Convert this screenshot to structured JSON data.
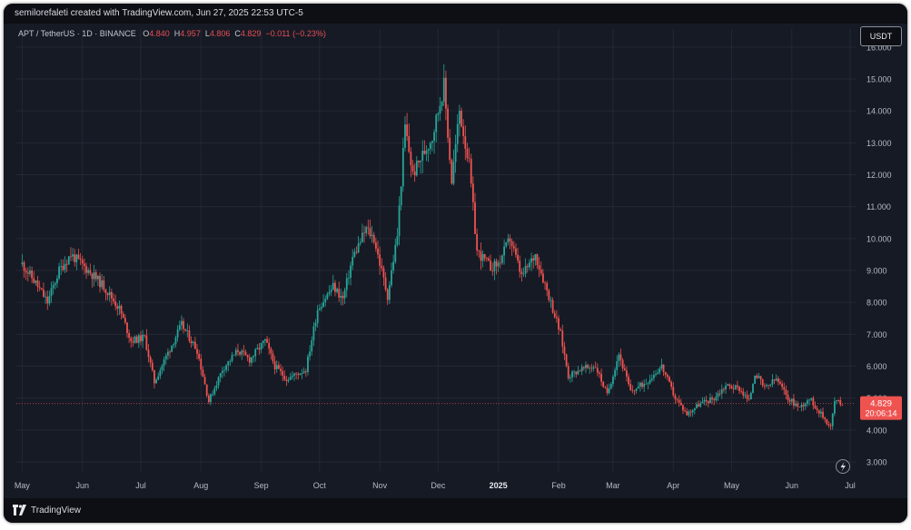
{
  "header": {
    "attribution": "semilorefaleti created with TradingView.com, Jun 27, 2025 22:53 UTC-5"
  },
  "legend": {
    "symbol": "APT / TetherUS · 1D · BINANCE",
    "o_label": "O",
    "o_value": "4.840",
    "h_label": "H",
    "h_value": "4.957",
    "l_label": "L",
    "l_value": "4.806",
    "c_label": "C",
    "c_value": "4.829",
    "change": "−0.011 (−0.23%)"
  },
  "currency_button": "USDT",
  "last_price": {
    "value": "4.829",
    "countdown": "20:06:14"
  },
  "footer": {
    "brand": "TradingView"
  },
  "colors": {
    "up": "#26a69a",
    "down": "#ef5350",
    "background": "#161a24",
    "grid": "#232836",
    "axis_text": "#b6bac4"
  },
  "chart_data": {
    "type": "candlestick",
    "title": "APT / TetherUS · 1D · BINANCE",
    "ylim": [
      2.7,
      16.5
    ],
    "y_ticks": [
      3,
      4,
      5,
      6,
      7,
      8,
      9,
      10,
      11,
      12,
      13,
      14,
      15,
      16
    ],
    "y_tick_labels": [
      "3.000",
      "4.000",
      "5.000",
      "6.000",
      "7.000",
      "8.000",
      "9.000",
      "10.000",
      "11.000",
      "12.000",
      "13.000",
      "14.000",
      "15.000",
      "16.000"
    ],
    "x_tick_labels": [
      "May",
      "Jun",
      "Jul",
      "Aug",
      "Sep",
      "Oct",
      "Nov",
      "Dec",
      "2025",
      "Feb",
      "Mar",
      "Apr",
      "May",
      "Jun",
      "Jul"
    ],
    "grid": true,
    "close_path": [
      {
        "date": "2024-05-01",
        "close": 9.2
      },
      {
        "date": "2024-05-08",
        "close": 8.6
      },
      {
        "date": "2024-05-14",
        "close": 8.0
      },
      {
        "date": "2024-05-20",
        "close": 9.0
      },
      {
        "date": "2024-05-26",
        "close": 9.5
      },
      {
        "date": "2024-06-04",
        "close": 9.0
      },
      {
        "date": "2024-06-12",
        "close": 8.5
      },
      {
        "date": "2024-06-20",
        "close": 7.8
      },
      {
        "date": "2024-06-26",
        "close": 6.8
      },
      {
        "date": "2024-07-03",
        "close": 6.9
      },
      {
        "date": "2024-07-08",
        "close": 5.5
      },
      {
        "date": "2024-07-14",
        "close": 6.3
      },
      {
        "date": "2024-07-22",
        "close": 7.3
      },
      {
        "date": "2024-07-30",
        "close": 6.5
      },
      {
        "date": "2024-08-05",
        "close": 4.9
      },
      {
        "date": "2024-08-12",
        "close": 5.9
      },
      {
        "date": "2024-08-20",
        "close": 6.5
      },
      {
        "date": "2024-08-26",
        "close": 6.2
      },
      {
        "date": "2024-09-03",
        "close": 6.8
      },
      {
        "date": "2024-09-08",
        "close": 6.0
      },
      {
        "date": "2024-09-14",
        "close": 5.6
      },
      {
        "date": "2024-09-24",
        "close": 5.9
      },
      {
        "date": "2024-09-30",
        "close": 7.8
      },
      {
        "date": "2024-10-08",
        "close": 8.5
      },
      {
        "date": "2024-10-13",
        "close": 8.1
      },
      {
        "date": "2024-10-18",
        "close": 9.4
      },
      {
        "date": "2024-10-25",
        "close": 10.3
      },
      {
        "date": "2024-10-29",
        "close": 10.0
      },
      {
        "date": "2024-11-05",
        "close": 8.2
      },
      {
        "date": "2024-11-10",
        "close": 10.1
      },
      {
        "date": "2024-11-14",
        "close": 13.5
      },
      {
        "date": "2024-11-18",
        "close": 12.0
      },
      {
        "date": "2024-11-22",
        "close": 12.5
      },
      {
        "date": "2024-11-28",
        "close": 13.2
      },
      {
        "date": "2024-12-04",
        "close": 14.8
      },
      {
        "date": "2024-12-08",
        "close": 11.8
      },
      {
        "date": "2024-12-12",
        "close": 14.0
      },
      {
        "date": "2024-12-17",
        "close": 12.3
      },
      {
        "date": "2024-12-21",
        "close": 9.6
      },
      {
        "date": "2024-12-28",
        "close": 9.1
      },
      {
        "date": "2025-01-01",
        "close": 9.2
      },
      {
        "date": "2025-01-07",
        "close": 10.0
      },
      {
        "date": "2025-01-13",
        "close": 8.8
      },
      {
        "date": "2025-01-20",
        "close": 9.5
      },
      {
        "date": "2025-01-27",
        "close": 8.2
      },
      {
        "date": "2025-02-02",
        "close": 7.0
      },
      {
        "date": "2025-02-06",
        "close": 5.7
      },
      {
        "date": "2025-02-12",
        "close": 5.9
      },
      {
        "date": "2025-02-20",
        "close": 6.0
      },
      {
        "date": "2025-02-26",
        "close": 5.1
      },
      {
        "date": "2025-03-04",
        "close": 6.4
      },
      {
        "date": "2025-03-10",
        "close": 5.2
      },
      {
        "date": "2025-03-18",
        "close": 5.5
      },
      {
        "date": "2025-03-26",
        "close": 6.0
      },
      {
        "date": "2025-04-02",
        "close": 5.0
      },
      {
        "date": "2025-04-08",
        "close": 4.5
      },
      {
        "date": "2025-04-14",
        "close": 4.8
      },
      {
        "date": "2025-04-22",
        "close": 5.0
      },
      {
        "date": "2025-04-28",
        "close": 5.4
      },
      {
        "date": "2025-05-05",
        "close": 5.3
      },
      {
        "date": "2025-05-10",
        "close": 4.9
      },
      {
        "date": "2025-05-13",
        "close": 5.8
      },
      {
        "date": "2025-05-18",
        "close": 5.3
      },
      {
        "date": "2025-05-24",
        "close": 5.6
      },
      {
        "date": "2025-05-30",
        "close": 5.0
      },
      {
        "date": "2025-06-05",
        "close": 4.7
      },
      {
        "date": "2025-06-10",
        "close": 5.0
      },
      {
        "date": "2025-06-16",
        "close": 4.5
      },
      {
        "date": "2025-06-21",
        "close": 4.1
      },
      {
        "date": "2025-06-23",
        "close": 4.9
      },
      {
        "date": "2025-06-27",
        "close": 4.829
      }
    ],
    "last_close": 4.829
  }
}
